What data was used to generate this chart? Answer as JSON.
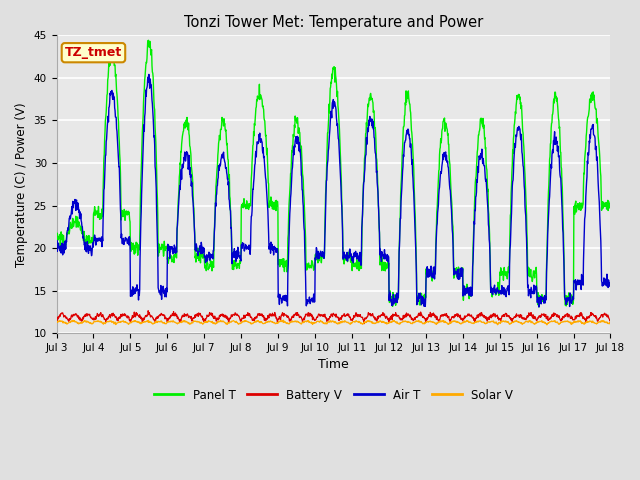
{
  "title": "Tonzi Tower Met: Temperature and Power",
  "xlabel": "Time",
  "ylabel": "Temperature (C) / Power (V)",
  "ylim": [
    10,
    45
  ],
  "yticks": [
    10,
    15,
    20,
    25,
    30,
    35,
    40,
    45
  ],
  "xtick_labels": [
    "Jul 3",
    "Jul 4",
    "Jul 5",
    "Jul 6",
    "Jul 7",
    "Jul 8",
    "Jul 9",
    "Jul 10",
    "Jul 11",
    "Jul 12",
    "Jul 13",
    "Jul 14",
    "Jul 15",
    "Jul 16",
    "Jul 17",
    "Jul 18"
  ],
  "legend_labels": [
    "Panel T",
    "Battery V",
    "Air T",
    "Solar V"
  ],
  "legend_colors": [
    "#00ee00",
    "#dd0000",
    "#0000cc",
    "#ffaa00"
  ],
  "annotation_text": "TZ_tmet",
  "annotation_color": "#cc0000",
  "annotation_bg": "#ffffcc",
  "annotation_border": "#cc8800",
  "fig_bg_color": "#e0e0e0",
  "plot_bg": "#e8e8e8",
  "grid_color": "#ffffff",
  "n_days": 15,
  "samples_per_day": 96,
  "figwidth": 6.4,
  "figheight": 4.8,
  "dpi": 100
}
